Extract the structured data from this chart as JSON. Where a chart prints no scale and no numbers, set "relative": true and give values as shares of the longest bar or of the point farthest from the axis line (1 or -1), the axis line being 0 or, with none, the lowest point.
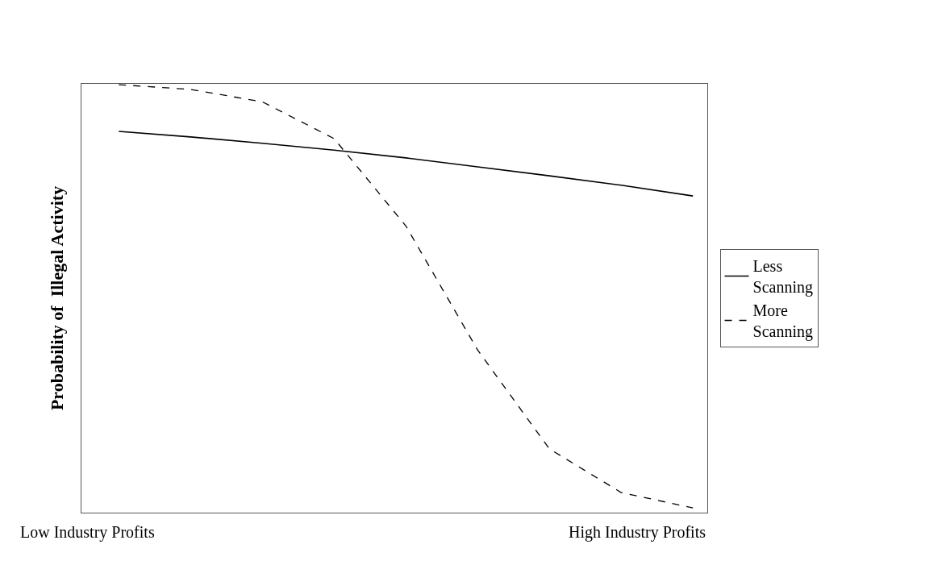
{
  "chart_data": {
    "type": "line",
    "relative": true,
    "ylabel": "Probability of  Illegal Activity",
    "categories": [
      null,
      null,
      null,
      null,
      null,
      null,
      null,
      null,
      null
    ],
    "series": [
      {
        "name": "Less Scanning",
        "color": "#000000",
        "line_style": "solid",
        "values": [
          0.891,
          0.878,
          0.863,
          0.847,
          0.829,
          0.808,
          0.787,
          0.765,
          0.74
        ]
      },
      {
        "name": "More Scanning",
        "color": "#000000",
        "line_style": "dashed",
        "values": [
          1,
          0.989,
          0.96,
          0.874,
          0.67,
          0.38,
          0.149,
          0.047,
          0.011
        ]
      }
    ],
    "annotations": [
      "Low Industry Profits",
      "High Industry Profits"
    ],
    "legend": "right",
    "marker": "none"
  }
}
